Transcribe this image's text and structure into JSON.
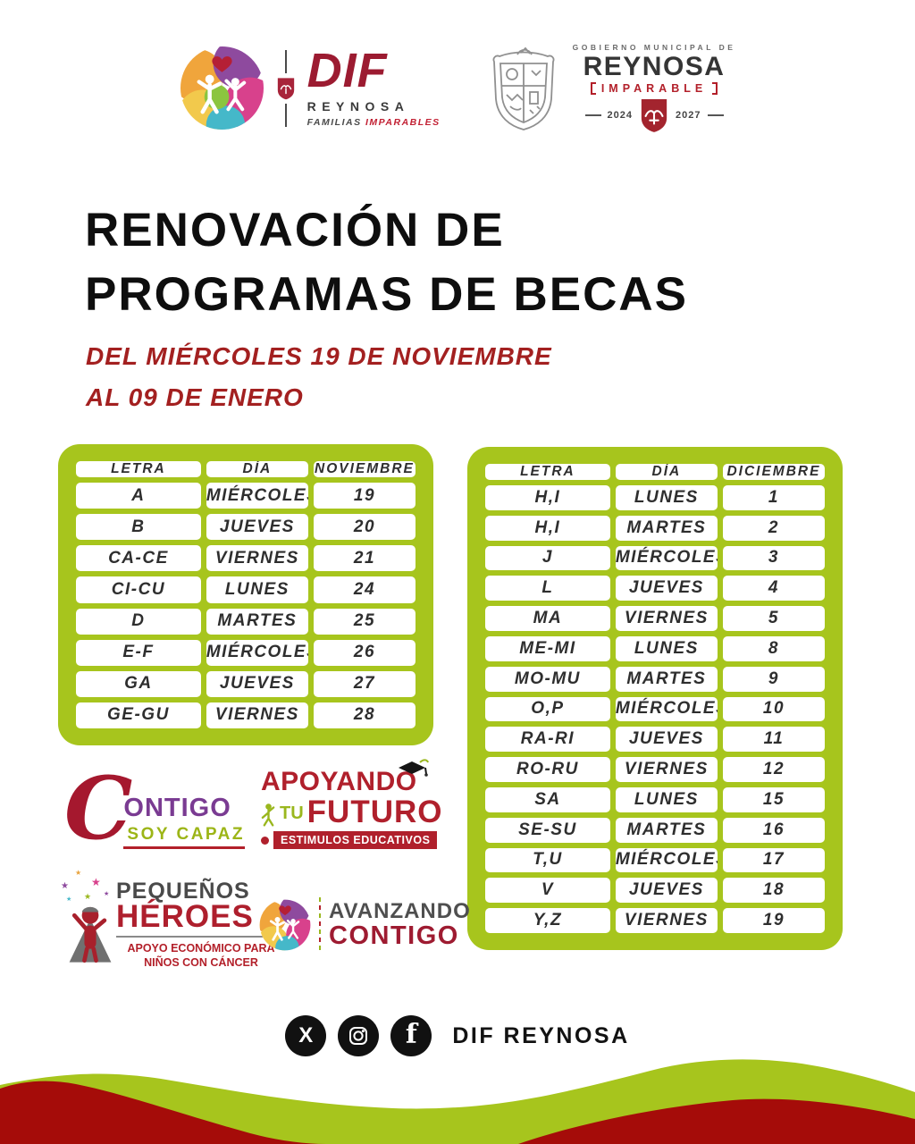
{
  "header": {
    "dif": {
      "name": "DIF",
      "city": "REYNOSA",
      "tagline_a": "FAMILIAS",
      "tagline_b": "IMPARABLES"
    },
    "gov": {
      "overline": "GOBIERNO MUNICIPAL DE",
      "city": "REYNOSA",
      "motto": "IMPARABLE",
      "year_from": "2024",
      "year_to": "2027"
    }
  },
  "title": {
    "line1": "RENOVACIÓN DE",
    "line2": "PROGRAMAS DE BECAS"
  },
  "subtitle": {
    "line1": "DEL MIÉRCOLES 19 DE NOVIEMBRE",
    "line2": "AL 09 DE ENERO"
  },
  "tables": [
    {
      "id": "november",
      "headers": [
        "LETRA",
        "DÍA",
        "NOVIEMBRE"
      ],
      "rows": [
        [
          "A",
          "MIÉRCOLES",
          "19"
        ],
        [
          "B",
          "JUEVES",
          "20"
        ],
        [
          "CA-CE",
          "VIERNES",
          "21"
        ],
        [
          "CI-CU",
          "LUNES",
          "24"
        ],
        [
          "D",
          "MARTES",
          "25"
        ],
        [
          "E-F",
          "MIÉRCOLES",
          "26"
        ],
        [
          "GA",
          "JUEVES",
          "27"
        ],
        [
          "GE-GU",
          "VIERNES",
          "28"
        ]
      ]
    },
    {
      "id": "december",
      "headers": [
        "LETRA",
        "DÍA",
        "DICIEMBRE"
      ],
      "rows": [
        [
          "H,I",
          "LUNES",
          "1"
        ],
        [
          "H,I",
          "MARTES",
          "2"
        ],
        [
          "J",
          "MIÉRCOLES",
          "3"
        ],
        [
          "L",
          "JUEVES",
          "4"
        ],
        [
          "MA",
          "VIERNES",
          "5"
        ],
        [
          "ME-MI",
          "LUNES",
          "8"
        ],
        [
          "MO-MU",
          "MARTES",
          "9"
        ],
        [
          "O,P",
          "MIÉRCOLES",
          "10"
        ],
        [
          "RA-RI",
          "JUEVES",
          "11"
        ],
        [
          "RO-RU",
          "VIERNES",
          "12"
        ],
        [
          "SA",
          "LUNES",
          "15"
        ],
        [
          "SE-SU",
          "MARTES",
          "16"
        ],
        [
          "T,U",
          "MIÉRCOLES",
          "17"
        ],
        [
          "V",
          "JUEVES",
          "18"
        ],
        [
          "Y,Z",
          "VIERNES",
          "19"
        ]
      ]
    }
  ],
  "programs": {
    "contigo": {
      "initial": "C",
      "name": "ONTIGO",
      "tagline": "SOY CAPAZ"
    },
    "apoyando": {
      "word1": "APOYANDO",
      "word2": "TU",
      "word3": "FUTURO",
      "bar": "ESTIMULOS EDUCATIVOS"
    },
    "heroes": {
      "word1": "PEQUEÑOS",
      "word2": "HÉROES",
      "sub1": "APOYO ECONÓMICO PARA",
      "sub2": "NIÑOS CON CÁNCER"
    },
    "avanzando": {
      "word1": "AVANZANDO",
      "word2": "CONTIGO"
    }
  },
  "footer": {
    "brand": "DIF REYNOSA",
    "icons": [
      "x-icon",
      "instagram-icon",
      "facebook-icon"
    ]
  },
  "colors": {
    "lime_green": "#a7c51d",
    "wave_red": "#a50c09",
    "text_red": "#a32020",
    "brand_red": "#9c1b31",
    "charcoal": "#3a3a3a",
    "purple": "#7a3b92",
    "leaf_green": "#9ab71e",
    "black": "#0e0e0e"
  }
}
